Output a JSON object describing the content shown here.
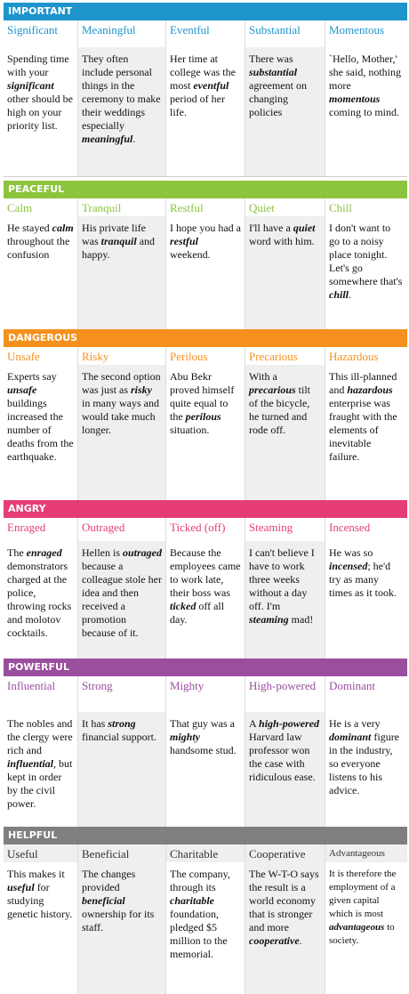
{
  "sections": [
    {
      "title": "IMPORTANT",
      "color": "#1e94cc",
      "words": [
        "Significant",
        "Meaningful",
        "Eventful",
        "Substantial",
        "Momentous"
      ],
      "examples": [
        [
          "Spending time with your ",
          "significant",
          " other should be high on your priority list."
        ],
        [
          "They often include personal things in the ceremony to make their weddings especially ",
          "meaningful",
          "."
        ],
        [
          "Her time at college was the most ",
          "eventful",
          " period of her life."
        ],
        [
          "There was ",
          "substantial",
          " agreement on changing policies"
        ],
        [
          "`Hello, Mother,' she said, nothing more ",
          "momentous",
          " coming to mind."
        ]
      ]
    },
    {
      "title": "PEACEFUL",
      "color": "#8cc43e",
      "words": [
        "Calm",
        "Tranquil",
        "Restful",
        "Quiet",
        "Chill"
      ],
      "examples": [
        [
          "He stayed ",
          "calm",
          " throughout the confusion"
        ],
        [
          "His private life was ",
          "tranquil",
          " and happy."
        ],
        [
          "I hope you had a ",
          "restful",
          " weekend."
        ],
        [
          "I'll have a ",
          "quiet",
          " word with him."
        ],
        [
          "I don't want to go to a noisy place tonight. Let's go somewhere that's ",
          "chill",
          "."
        ]
      ]
    },
    {
      "title": "DANGEROUS",
      "color": "#f5901e",
      "words": [
        "Unsafe",
        "Risky",
        "Perilous",
        "Precarious",
        "Hazardous"
      ],
      "examples": [
        [
          "Experts say ",
          "unsafe",
          " buildings increased the number of deaths from the earthquake."
        ],
        [
          "The second option was just as ",
          "risky",
          " in many ways and would take much longer."
        ],
        [
          "Abu Bekr proved himself quite equal to the ",
          "perilous",
          " situation."
        ],
        [
          "With a ",
          "precarious",
          " tilt of the bicycle, he turned and rode off."
        ],
        [
          "This ill-planned and ",
          "hazardous",
          " enterprise was fraught with the elements of inevitable failure."
        ]
      ]
    },
    {
      "title": "ANGRY",
      "color": "#e63d74",
      "words": [
        "Enraged",
        "Outraged",
        "Ticked (off)",
        "Steaming",
        "Incensed"
      ],
      "examples": [
        [
          "The ",
          "enraged",
          " demonstrators charged at the police, throwing rocks and molotov cocktails."
        ],
        [
          "Hellen is ",
          "outraged",
          " because a colleague stole her idea and then received a promotion because of it."
        ],
        [
          "Because the employees came to work late, their boss was ",
          "ticked",
          " off all day."
        ],
        [
          "I can't believe I have to work three weeks without a day off. I'm ",
          "steaming",
          " mad!"
        ],
        [
          "He was so ",
          "incensed",
          "; he'd try as many times as it took."
        ]
      ]
    },
    {
      "title": "POWERFUL",
      "color": "#9a4e9e",
      "words": [
        "Influential",
        "Strong",
        "Mighty",
        "High-powered",
        "Dominant"
      ],
      "examples": [
        [
          "The nobles and the clergy were rich and ",
          "influential",
          ", but kept in order by the civil power."
        ],
        [
          "It has ",
          "strong",
          " financial support."
        ],
        [
          "That guy was a ",
          "mighty",
          " handsome stud."
        ],
        [
          "A ",
          "high-powered",
          " Harvard law professor won the case with ridiculous ease."
        ],
        [
          "He is a very ",
          "dominant",
          " figure in the industry, so everyone listens to his advice."
        ]
      ]
    },
    {
      "title": "HELPFUL",
      "color": "#7f7f7f",
      "words": [
        "Useful",
        "Beneficial",
        "Charitable",
        "Cooperative",
        "Advantageous"
      ],
      "examples": [
        [
          "This makes it ",
          "useful",
          " for studying genetic history."
        ],
        [
          "The changes provided ",
          "beneficial",
          " ownership for its staff."
        ],
        [
          "The company, through its ",
          "charitable",
          " foundation, pledged $5 million to the memorial."
        ],
        [
          "The W-T-O says the result is a world economy that is stronger and more ",
          "cooperative",
          "."
        ],
        [
          "It is therefore the employment of a given capital which is most ",
          "advantageous",
          " to society."
        ]
      ]
    }
  ]
}
